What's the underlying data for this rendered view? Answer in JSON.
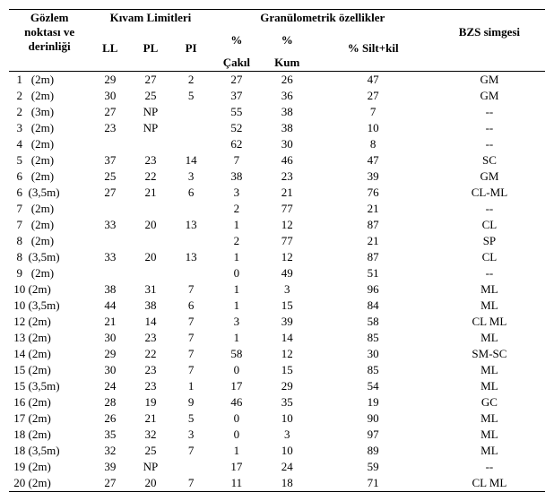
{
  "headers": {
    "obs": "Gözlem noktası ve derinliği",
    "kivam": "Kıvam Limitleri",
    "gran": "Granülometrik özellikler",
    "bzs": "BZS simgesi",
    "ll": "LL",
    "pl": "PL",
    "pi": "PI",
    "cakil_pct": "%",
    "cakil": "Çakıl",
    "kum_pct": "%",
    "kum": "Kum",
    "silt": "% Silt+kil"
  },
  "rows": [
    {
      "obs": "  1   (2m)",
      "ll": "29",
      "pl": "27",
      "pi": "2",
      "cakil": "27",
      "kum": "26",
      "silt": "47",
      "bzs": "GM"
    },
    {
      "obs": "  2   (2m)",
      "ll": "30",
      "pl": "25",
      "pi": "5",
      "cakil": "37",
      "kum": "36",
      "silt": "27",
      "bzs": "GM"
    },
    {
      "obs": "  2   (3m)",
      "ll": "27",
      "pl": "NP",
      "pi": "",
      "cakil": "55",
      "kum": "38",
      "silt": "7",
      "bzs": "--"
    },
    {
      "obs": "  3   (2m)",
      "ll": "23",
      "pl": "NP",
      "pi": "",
      "cakil": "52",
      "kum": "38",
      "silt": "10",
      "bzs": "--"
    },
    {
      "obs": "  4   (2m)",
      "ll": "",
      "pl": "",
      "pi": "",
      "cakil": "62",
      "kum": "30",
      "silt": "8",
      "bzs": "--"
    },
    {
      "obs": "  5   (2m)",
      "ll": "37",
      "pl": "23",
      "pi": "14",
      "cakil": "7",
      "kum": "46",
      "silt": "47",
      "bzs": "SC"
    },
    {
      "obs": "  6   (2m)",
      "ll": "25",
      "pl": "22",
      "pi": "3",
      "cakil": "38",
      "kum": "23",
      "silt": "39",
      "bzs": "GM"
    },
    {
      "obs": "  6  (3,5m)",
      "ll": "27",
      "pl": "21",
      "pi": "6",
      "cakil": "3",
      "kum": "21",
      "silt": "76",
      "bzs": "CL-ML"
    },
    {
      "obs": "  7   (2m)",
      "ll": "",
      "pl": "",
      "pi": "",
      "cakil": "2",
      "kum": "77",
      "silt": "21",
      "bzs": "--"
    },
    {
      "obs": "  7   (2m)",
      "ll": "33",
      "pl": "20",
      "pi": "13",
      "cakil": "1",
      "kum": "12",
      "silt": "87",
      "bzs": "CL"
    },
    {
      "obs": "  8   (2m)",
      "ll": "",
      "pl": "",
      "pi": "",
      "cakil": "2",
      "kum": "77",
      "silt": "21",
      "bzs": "SP"
    },
    {
      "obs": "  8  (3,5m)",
      "ll": "33",
      "pl": "20",
      "pi": "13",
      "cakil": "1",
      "kum": "12",
      "silt": "87",
      "bzs": "CL"
    },
    {
      "obs": "  9   (2m)",
      "ll": "",
      "pl": "",
      "pi": "",
      "cakil": "0",
      "kum": "49",
      "silt": "51",
      "bzs": "--"
    },
    {
      "obs": " 10 (2m)",
      "ll": "38",
      "pl": "31",
      "pi": "7",
      "cakil": "1",
      "kum": "3",
      "silt": "96",
      "bzs": "ML"
    },
    {
      "obs": " 10 (3,5m)",
      "ll": "44",
      "pl": "38",
      "pi": "6",
      "cakil": "1",
      "kum": "15",
      "silt": "84",
      "bzs": "ML"
    },
    {
      "obs": " 12 (2m)",
      "ll": "21",
      "pl": "14",
      "pi": "7",
      "cakil": "3",
      "kum": "39",
      "silt": "58",
      "bzs": "CL ML"
    },
    {
      "obs": " 13 (2m)",
      "ll": "30",
      "pl": "23",
      "pi": "7",
      "cakil": "1",
      "kum": "14",
      "silt": "85",
      "bzs": "ML"
    },
    {
      "obs": " 14 (2m)",
      "ll": "29",
      "pl": "22",
      "pi": "7",
      "cakil": "58",
      "kum": "12",
      "silt": "30",
      "bzs": "SM-SC"
    },
    {
      "obs": " 15 (2m)",
      "ll": "30",
      "pl": "23",
      "pi": "7",
      "cakil": "0",
      "kum": "15",
      "silt": "85",
      "bzs": "ML"
    },
    {
      "obs": " 15 (3,5m)",
      "ll": "24",
      "pl": "23",
      "pi": "1",
      "cakil": "17",
      "kum": "29",
      "silt": "54",
      "bzs": "ML"
    },
    {
      "obs": " 16 (2m)",
      "ll": "28",
      "pl": "19",
      "pi": "9",
      "cakil": "46",
      "kum": "35",
      "silt": "19",
      "bzs": "GC"
    },
    {
      "obs": " 17 (2m)",
      "ll": "26",
      "pl": "21",
      "pi": "5",
      "cakil": "0",
      "kum": "10",
      "silt": "90",
      "bzs": "ML"
    },
    {
      "obs": " 18 (2m)",
      "ll": "35",
      "pl": "32",
      "pi": "3",
      "cakil": "0",
      "kum": "3",
      "silt": "97",
      "bzs": "ML"
    },
    {
      "obs": " 18 (3,5m)",
      "ll": "32",
      "pl": "25",
      "pi": "7",
      "cakil": "1",
      "kum": "10",
      "silt": "89",
      "bzs": "ML"
    },
    {
      "obs": " 19 (2m)",
      "ll": "39",
      "pl": "NP",
      "pi": "",
      "cakil": "17",
      "kum": "24",
      "silt": "59",
      "bzs": "--"
    },
    {
      "obs": " 20 (2m)",
      "ll": "27",
      "pl": "20",
      "pi": "7",
      "cakil": "11",
      "kum": "18",
      "silt": "71",
      "bzs": "CL ML"
    }
  ]
}
